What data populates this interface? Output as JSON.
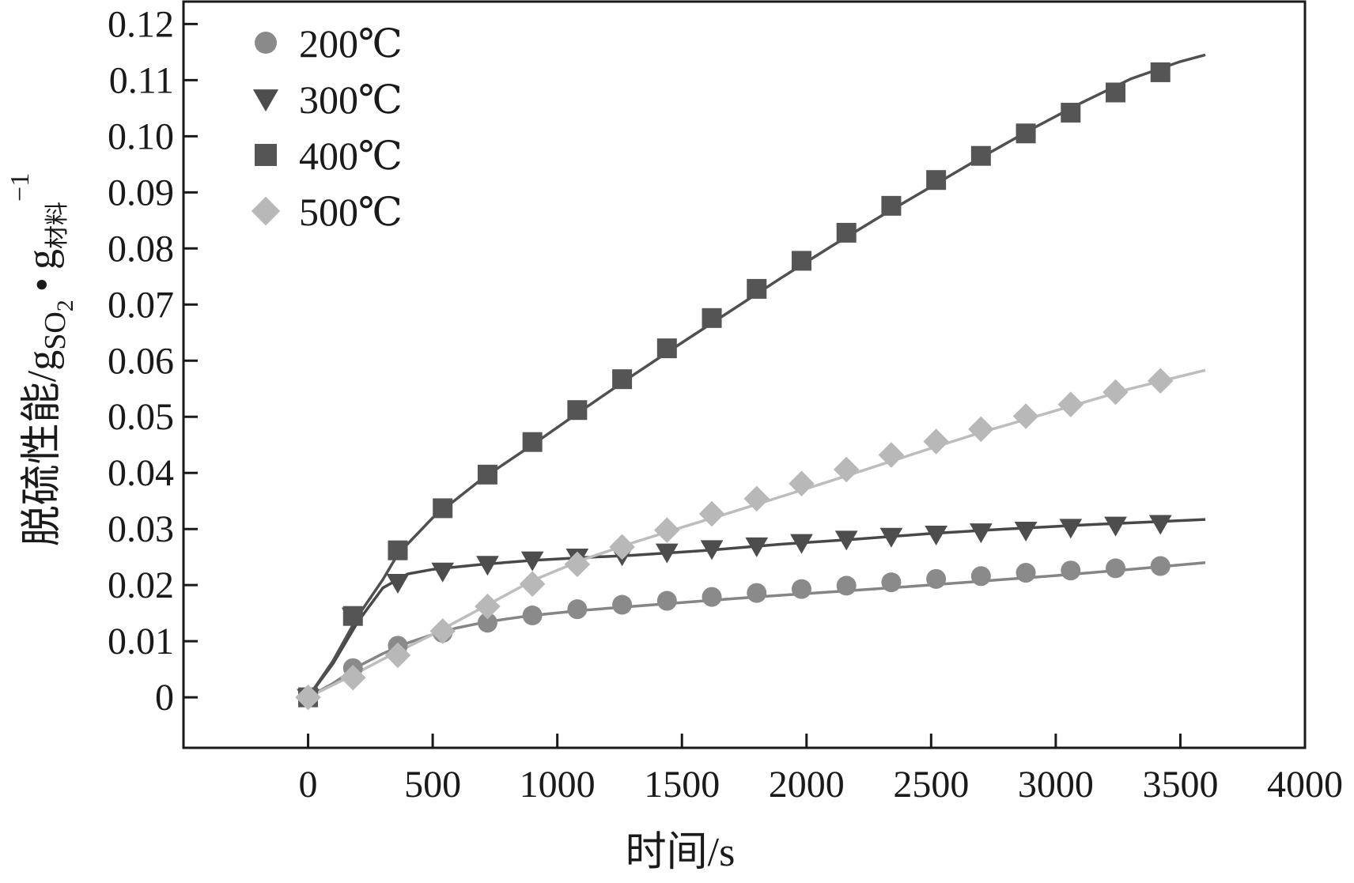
{
  "chart_data": {
    "type": "line",
    "xlabel": "时间/s",
    "ylabel": {
      "prefix": "脱硫性能/g",
      "sub1": "SO",
      "sub1_sub": "2",
      "dot": "•",
      "g": "g",
      "sub2": "材料",
      "sup": "−1"
    },
    "xlim": [
      -500,
      4000
    ],
    "ylim": [
      -0.009,
      0.124
    ],
    "xticks": [
      "0",
      "500",
      "1000",
      "1500",
      "2000",
      "2500",
      "3000",
      "3500",
      "4000"
    ],
    "xtick_values": [
      0,
      500,
      1000,
      1500,
      2000,
      2500,
      3000,
      3500,
      4000
    ],
    "yticks": [
      "0",
      "0.01",
      "0.02",
      "0.03",
      "0.04",
      "0.05",
      "0.06",
      "0.07",
      "0.08",
      "0.09",
      "0.10",
      "0.11",
      "0.12"
    ],
    "ytick_values": [
      0,
      0.01,
      0.02,
      0.03,
      0.04,
      0.05,
      0.06,
      0.07,
      0.08,
      0.09,
      0.1,
      0.11,
      0.12
    ],
    "legend_position": "top-left",
    "grid": false,
    "series": [
      {
        "name": "200℃",
        "marker": "circle",
        "color": "#8a8a8a",
        "line_color": "#858585",
        "curve": [
          [
            0,
            0
          ],
          [
            100,
            0.0025
          ],
          [
            200,
            0.0055
          ],
          [
            300,
            0.0078
          ],
          [
            400,
            0.0097
          ],
          [
            500,
            0.0112
          ],
          [
            600,
            0.0124
          ],
          [
            700,
            0.0133
          ],
          [
            800,
            0.014
          ],
          [
            900,
            0.0146
          ],
          [
            1100,
            0.0155
          ],
          [
            1300,
            0.0162
          ],
          [
            1500,
            0.0169
          ],
          [
            1800,
            0.0179
          ],
          [
            2100,
            0.0188
          ],
          [
            2400,
            0.0197
          ],
          [
            2700,
            0.0207
          ],
          [
            3000,
            0.0217
          ],
          [
            3300,
            0.0228
          ],
          [
            3600,
            0.024
          ]
        ],
        "x": [
          0,
          180,
          360,
          540,
          720,
          900,
          1080,
          1260,
          1440,
          1620,
          1800,
          1980,
          2160,
          2340,
          2520,
          2700,
          2880,
          3060,
          3240,
          3420
        ],
        "values": [
          0,
          0.0052,
          0.0092,
          0.0115,
          0.0133,
          0.0146,
          0.0157,
          0.0165,
          0.0172,
          0.0179,
          0.0186,
          0.0193,
          0.0199,
          0.0205,
          0.0211,
          0.0216,
          0.0222,
          0.0226,
          0.023,
          0.0234
        ]
      },
      {
        "name": "300℃",
        "marker": "triangle-down",
        "color": "#4d4d4d",
        "line_color": "#484848",
        "curve": [
          [
            0,
            0
          ],
          [
            100,
            0.006
          ],
          [
            200,
            0.0135
          ],
          [
            300,
            0.0195
          ],
          [
            400,
            0.022
          ],
          [
            500,
            0.0228
          ],
          [
            700,
            0.0237
          ],
          [
            900,
            0.0244
          ],
          [
            1100,
            0.0249
          ],
          [
            1300,
            0.0253
          ],
          [
            1600,
            0.0262
          ],
          [
            1900,
            0.0273
          ],
          [
            2200,
            0.0282
          ],
          [
            2500,
            0.0292
          ],
          [
            2800,
            0.03
          ],
          [
            3100,
            0.0307
          ],
          [
            3400,
            0.0313
          ],
          [
            3600,
            0.0317
          ]
        ],
        "x": [
          0,
          180,
          360,
          540,
          720,
          900,
          1080,
          1260,
          1440,
          1620,
          1800,
          1980,
          2160,
          2340,
          2520,
          2700,
          2880,
          3060,
          3240,
          3420
        ],
        "values": [
          0,
          0.0145,
          0.0205,
          0.0225,
          0.0237,
          0.0245,
          0.025,
          0.0254,
          0.0259,
          0.0265,
          0.027,
          0.0276,
          0.0282,
          0.0287,
          0.0291,
          0.0295,
          0.0298,
          0.0303,
          0.0307,
          0.031
        ]
      },
      {
        "name": "400℃",
        "marker": "square",
        "color": "#555555",
        "line_color": "#505050",
        "curve": [
          [
            0,
            0
          ],
          [
            100,
            0.0065
          ],
          [
            200,
            0.0145
          ],
          [
            300,
            0.021
          ],
          [
            360,
            0.0255
          ],
          [
            500,
            0.032
          ],
          [
            700,
            0.039
          ],
          [
            900,
            0.045
          ],
          [
            1100,
            0.0512
          ],
          [
            1300,
            0.0573
          ],
          [
            1500,
            0.0632
          ],
          [
            1700,
            0.069
          ],
          [
            1900,
            0.0748
          ],
          [
            2100,
            0.0804
          ],
          [
            2300,
            0.0858
          ],
          [
            2500,
            0.091
          ],
          [
            2700,
            0.0962
          ],
          [
            2900,
            0.1012
          ],
          [
            3100,
            0.1059
          ],
          [
            3300,
            0.1102
          ],
          [
            3500,
            0.1133
          ],
          [
            3600,
            0.1145
          ]
        ],
        "x": [
          0,
          180,
          360,
          540,
          720,
          900,
          1080,
          1260,
          1440,
          1620,
          1800,
          1980,
          2160,
          2340,
          2520,
          2700,
          2880,
          3060,
          3240,
          3420
        ],
        "values": [
          0,
          0.0145,
          0.0262,
          0.0337,
          0.0397,
          0.0455,
          0.0512,
          0.0567,
          0.0622,
          0.0676,
          0.0728,
          0.0778,
          0.0828,
          0.0876,
          0.0922,
          0.0965,
          0.1005,
          0.1042,
          0.1078,
          0.1114
        ]
      },
      {
        "name": "500℃",
        "marker": "diamond",
        "color": "#b8b8b8",
        "line_color": "#bdbdbd",
        "curve": [
          [
            0,
            0
          ],
          [
            150,
            0.0033
          ],
          [
            300,
            0.0068
          ],
          [
            500,
            0.0112
          ],
          [
            700,
            0.016
          ],
          [
            900,
            0.0208
          ],
          [
            1100,
            0.0245
          ],
          [
            1300,
            0.0275
          ],
          [
            1500,
            0.0303
          ],
          [
            1700,
            0.033
          ],
          [
            1900,
            0.0358
          ],
          [
            2100,
            0.0386
          ],
          [
            2300,
            0.0415
          ],
          [
            2500,
            0.0444
          ],
          [
            2700,
            0.0472
          ],
          [
            2900,
            0.0498
          ],
          [
            3100,
            0.0524
          ],
          [
            3300,
            0.055
          ],
          [
            3500,
            0.0572
          ],
          [
            3600,
            0.0583
          ]
        ],
        "x": [
          0,
          180,
          360,
          540,
          720,
          900,
          1080,
          1260,
          1440,
          1620,
          1800,
          1980,
          2160,
          2340,
          2520,
          2700,
          2880,
          3060,
          3240,
          3420
        ],
        "values": [
          0,
          0.0035,
          0.0075,
          0.0118,
          0.0162,
          0.0202,
          0.0237,
          0.0268,
          0.0298,
          0.0327,
          0.0354,
          0.0381,
          0.0406,
          0.0432,
          0.0456,
          0.0478,
          0.0501,
          0.0522,
          0.0544,
          0.0564
        ]
      }
    ]
  }
}
